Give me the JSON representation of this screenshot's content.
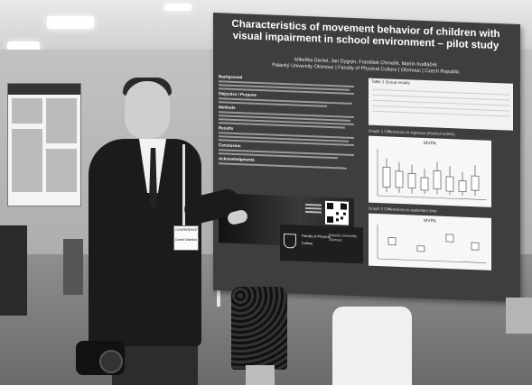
{
  "poster": {
    "title_line1": "Characteristics of movement behavior of children with",
    "title_line2": "visual impairment in school environment – pilot study",
    "authors": "Mikeška Daniel, Jan Dygrýn, František Chmelík, Martin Kudláček",
    "affiliation": "Palacký University Olomouc | Faculty of Physical Culture | Olomouc | Czech Republic",
    "sections": [
      "Background",
      "Objective / Purpose",
      "Methods",
      "Results",
      "Conclusion",
      "Acknowledgments"
    ],
    "table_caption": "Table 1 Group results",
    "chart1_caption": "Graph 1 Differences in vigorous physical activity",
    "chart1_title": "MVPA",
    "chart2_caption": "Graph 2 Differences in sedentary time",
    "chart2_title": "MVPA",
    "faculty_line1": "Faculty of Physical",
    "faculty_line2": "Culture",
    "university_line1": "Palacký University",
    "university_line2": "Olomouc"
  },
  "badge": {
    "line1": "CONFERENCE",
    "line2": "Daniel Mikeška"
  },
  "colors": {
    "board": "#3e3e3e",
    "poster_text": "#ffffff",
    "chart_background": "#f7f7f7"
  },
  "icons": {
    "qr_code": "qr-code-icon",
    "faculty_logo": "faculty-shield-icon"
  }
}
